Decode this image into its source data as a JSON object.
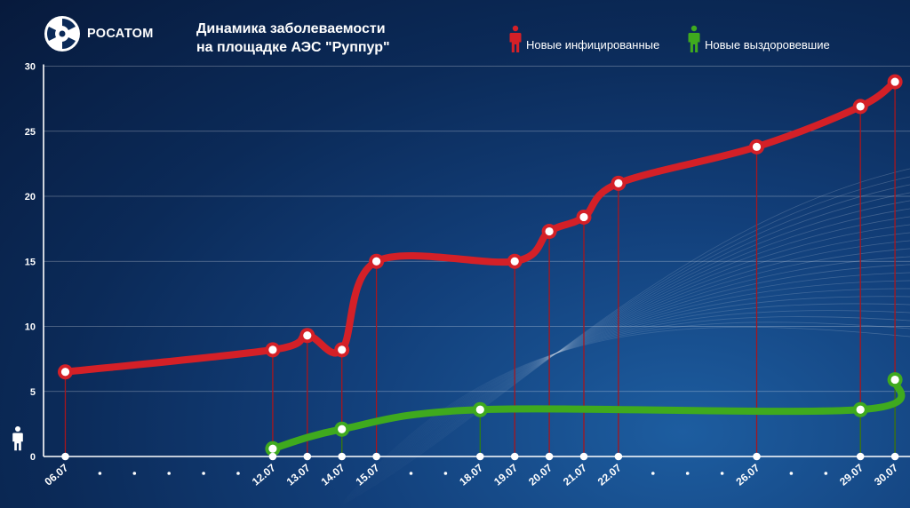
{
  "header": {
    "logo_text": "РОСАТОМ",
    "title_line1": "Динамика заболеваемости",
    "title_line2": "на площадке АЭС \"Руппур\""
  },
  "legend": {
    "infected_label": "Новые инфицированные",
    "recovered_label": "Новые выздоровевшие"
  },
  "colors": {
    "infected": "#d42027",
    "infected_dark": "#a8151c",
    "recovered": "#3faa1e",
    "recovered_dark": "#2b7d14",
    "axis": "#ffffff",
    "grid": "#ffffff"
  },
  "chart_data": {
    "type": "line",
    "title": "Динамика заболеваемости на площадке АЭС \"Руппур\"",
    "xlabel": "",
    "ylabel": "",
    "ylim": [
      0,
      30
    ],
    "yticks": [
      0,
      5,
      10,
      15,
      20,
      25,
      30
    ],
    "grid": true,
    "legend_position": "top-right",
    "x_labels": [
      "06.07",
      "12.07",
      "13.07",
      "14.07",
      "15.07",
      "18.07",
      "19.07",
      "20.07",
      "21.07",
      "22.07",
      "26.07",
      "29.07",
      "30.07"
    ],
    "x_day_positions": [
      6,
      12,
      13,
      14,
      15,
      18,
      19,
      20,
      21,
      22,
      26,
      29,
      30
    ],
    "x_dot_positions": [
      7,
      8,
      9,
      10,
      11,
      16,
      17,
      23,
      24,
      25,
      27,
      28
    ],
    "series": [
      {
        "name": "Новые инфицированные",
        "x": [
          6,
          12,
          13,
          14,
          15,
          19,
          20,
          21,
          22,
          26,
          29,
          30
        ],
        "values": [
          6.5,
          8.2,
          9.3,
          8.2,
          15,
          15,
          17.3,
          18.4,
          21,
          23.8,
          26.9,
          28.8
        ]
      },
      {
        "name": "Новые выздоровевшие",
        "x": [
          12,
          14,
          18,
          29,
          30
        ],
        "values": [
          0.6,
          2.1,
          3.6,
          3.6,
          5.9
        ]
      }
    ]
  }
}
